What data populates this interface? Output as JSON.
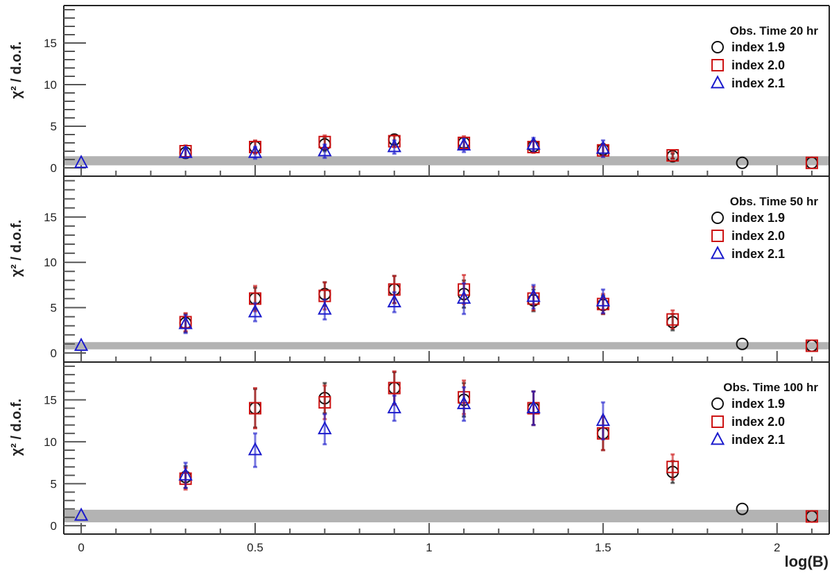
{
  "chart_data": {
    "type": "scatter",
    "xlabel": "log(B)",
    "ylabel": "χ² / d.o.f.",
    "xlim": [
      -0.05,
      2.15
    ],
    "x_ticks": [
      0,
      0.5,
      1,
      1.5,
      2
    ],
    "x_tick_labels": [
      "0",
      "0.5",
      "1",
      "1.5",
      "2"
    ],
    "grid": false,
    "legend_placement": "top-right",
    "colors": {
      "index_1_9": "#111111",
      "index_2_0": "#cc1111",
      "index_2_1": "#1a1acc",
      "band": "#b3b3b3"
    },
    "markers": {
      "index_1_9": "circle",
      "index_2_0": "square",
      "index_2_1": "triangle"
    },
    "panels": [
      {
        "legend_title": "Obs. Time 20 hr",
        "ylim": [
          -1,
          19.5
        ],
        "y_ticks": [
          0,
          5,
          10,
          15
        ],
        "y_tick_labels": [
          "0",
          "5",
          "10",
          "15"
        ],
        "band": [
          0.3,
          1.4
        ],
        "series": [
          {
            "name": "index 1.9",
            "points": [
              {
                "x": 0.3,
                "y": 1.8,
                "err": 0.6
              },
              {
                "x": 0.5,
                "y": 2.5,
                "err": 0.7
              },
              {
                "x": 0.7,
                "y": 2.8,
                "err": 0.8
              },
              {
                "x": 0.9,
                "y": 3.4,
                "err": 0.6
              },
              {
                "x": 1.1,
                "y": 3.0,
                "err": 0.6
              },
              {
                "x": 1.3,
                "y": 2.6,
                "err": 0.7
              },
              {
                "x": 1.5,
                "y": 2.2,
                "err": 0.7
              },
              {
                "x": 1.7,
                "y": 1.4,
                "err": 0.3
              },
              {
                "x": 1.9,
                "y": 0.6,
                "err": 0
              },
              {
                "x": 2.1,
                "y": 0.6,
                "err": 0
              }
            ]
          },
          {
            "name": "index 2.0",
            "points": [
              {
                "x": 0.3,
                "y": 2.0,
                "err": 0.7
              },
              {
                "x": 0.5,
                "y": 2.5,
                "err": 0.8
              },
              {
                "x": 0.7,
                "y": 3.1,
                "err": 0.8
              },
              {
                "x": 0.9,
                "y": 3.2,
                "err": 0.7
              },
              {
                "x": 1.1,
                "y": 3.0,
                "err": 0.8
              },
              {
                "x": 1.3,
                "y": 2.5,
                "err": 0.7
              },
              {
                "x": 1.5,
                "y": 2.1,
                "err": 0.7
              },
              {
                "x": 1.7,
                "y": 1.5,
                "err": 0.4
              },
              {
                "x": 2.1,
                "y": 0.6,
                "err": 0
              }
            ]
          },
          {
            "name": "index 2.1",
            "points": [
              {
                "x": 0.0,
                "y": 0.6,
                "err": 0
              },
              {
                "x": 0.3,
                "y": 1.8,
                "err": 0.6
              },
              {
                "x": 0.5,
                "y": 1.8,
                "err": 0.7
              },
              {
                "x": 0.7,
                "y": 2.0,
                "err": 0.8
              },
              {
                "x": 0.9,
                "y": 2.5,
                "err": 0.8
              },
              {
                "x": 1.1,
                "y": 2.7,
                "err": 0.8
              },
              {
                "x": 1.3,
                "y": 2.8,
                "err": 0.8
              },
              {
                "x": 1.5,
                "y": 2.3,
                "err": 1.0
              }
            ]
          }
        ]
      },
      {
        "legend_title": "Obs. Time 50 hr",
        "ylim": [
          -1,
          19.5
        ],
        "y_ticks": [
          0,
          5,
          10,
          15
        ],
        "y_tick_labels": [
          "0",
          "5",
          "10",
          "15"
        ],
        "band": [
          0.4,
          1.2
        ],
        "series": [
          {
            "name": "index 1.9",
            "points": [
              {
                "x": 0.3,
                "y": 3.3,
                "err": 1.0
              },
              {
                "x": 0.5,
                "y": 6.0,
                "err": 1.2
              },
              {
                "x": 0.7,
                "y": 6.5,
                "err": 1.3
              },
              {
                "x": 0.9,
                "y": 7.0,
                "err": 1.5
              },
              {
                "x": 1.1,
                "y": 6.5,
                "err": 1.5
              },
              {
                "x": 1.3,
                "y": 5.8,
                "err": 1.2
              },
              {
                "x": 1.5,
                "y": 5.3,
                "err": 1.0
              },
              {
                "x": 1.7,
                "y": 3.4,
                "err": 0.9
              },
              {
                "x": 1.9,
                "y": 1.0,
                "err": 0
              },
              {
                "x": 2.1,
                "y": 0.8,
                "err": 0
              }
            ]
          },
          {
            "name": "index 2.0",
            "points": [
              {
                "x": 0.3,
                "y": 3.4,
                "err": 1.0
              },
              {
                "x": 0.5,
                "y": 6.0,
                "err": 1.4
              },
              {
                "x": 0.7,
                "y": 6.3,
                "err": 1.5
              },
              {
                "x": 0.9,
                "y": 7.0,
                "err": 1.5
              },
              {
                "x": 1.1,
                "y": 7.0,
                "err": 1.6
              },
              {
                "x": 1.3,
                "y": 6.0,
                "err": 1.3
              },
              {
                "x": 1.5,
                "y": 5.4,
                "err": 1.1
              },
              {
                "x": 1.7,
                "y": 3.7,
                "err": 1.0
              },
              {
                "x": 2.1,
                "y": 0.8,
                "err": 0
              }
            ]
          },
          {
            "name": "index 2.1",
            "points": [
              {
                "x": 0.0,
                "y": 0.8,
                "err": 0
              },
              {
                "x": 0.3,
                "y": 3.2,
                "err": 1.0
              },
              {
                "x": 0.5,
                "y": 4.5,
                "err": 1.0
              },
              {
                "x": 0.7,
                "y": 4.8,
                "err": 1.1
              },
              {
                "x": 0.9,
                "y": 5.6,
                "err": 1.1
              },
              {
                "x": 1.1,
                "y": 6.0,
                "err": 1.7
              },
              {
                "x": 1.3,
                "y": 6.2,
                "err": 1.3
              },
              {
                "x": 1.5,
                "y": 5.7,
                "err": 1.3
              }
            ]
          }
        ]
      },
      {
        "legend_title": "Obs. Time 100 hr",
        "ylim": [
          -1,
          19.5
        ],
        "y_ticks": [
          0,
          5,
          10,
          15
        ],
        "y_tick_labels": [
          "0",
          "5",
          "10",
          "15"
        ],
        "band": [
          0.4,
          1.9
        ],
        "series": [
          {
            "name": "index 1.9",
            "points": [
              {
                "x": 0.3,
                "y": 5.8,
                "err": 1.3
              },
              {
                "x": 0.5,
                "y": 14.0,
                "err": 2.3
              },
              {
                "x": 0.7,
                "y": 15.2,
                "err": 1.8
              },
              {
                "x": 0.9,
                "y": 16.4,
                "err": 1.9
              },
              {
                "x": 1.1,
                "y": 15.0,
                "err": 2.0
              },
              {
                "x": 1.3,
                "y": 14.0,
                "err": 2.0
              },
              {
                "x": 1.5,
                "y": 11.0,
                "err": 2.0
              },
              {
                "x": 1.7,
                "y": 6.4,
                "err": 1.3
              },
              {
                "x": 1.9,
                "y": 2.0,
                "err": 0
              },
              {
                "x": 2.1,
                "y": 1.1,
                "err": 0
              }
            ]
          },
          {
            "name": "index 2.0",
            "points": [
              {
                "x": 0.3,
                "y": 5.6,
                "err": 1.3
              },
              {
                "x": 0.5,
                "y": 14.0,
                "err": 2.4
              },
              {
                "x": 0.7,
                "y": 14.7,
                "err": 2.0
              },
              {
                "x": 0.9,
                "y": 16.4,
                "err": 2.0
              },
              {
                "x": 1.1,
                "y": 15.3,
                "err": 2.0
              },
              {
                "x": 1.3,
                "y": 14.0,
                "err": 2.0
              },
              {
                "x": 1.5,
                "y": 11.0,
                "err": 2.0
              },
              {
                "x": 1.7,
                "y": 7.0,
                "err": 1.5
              },
              {
                "x": 2.1,
                "y": 1.1,
                "err": 0
              }
            ]
          },
          {
            "name": "index 2.1",
            "points": [
              {
                "x": 0.0,
                "y": 1.2,
                "err": 0
              },
              {
                "x": 0.3,
                "y": 6.0,
                "err": 1.5
              },
              {
                "x": 0.5,
                "y": 9.0,
                "err": 2.0
              },
              {
                "x": 0.7,
                "y": 11.5,
                "err": 1.8
              },
              {
                "x": 0.9,
                "y": 14.0,
                "err": 1.5
              },
              {
                "x": 1.1,
                "y": 14.5,
                "err": 2.0
              },
              {
                "x": 1.3,
                "y": 14.0,
                "err": 2.0
              },
              {
                "x": 1.5,
                "y": 12.5,
                "err": 2.2
              }
            ]
          }
        ]
      }
    ]
  }
}
